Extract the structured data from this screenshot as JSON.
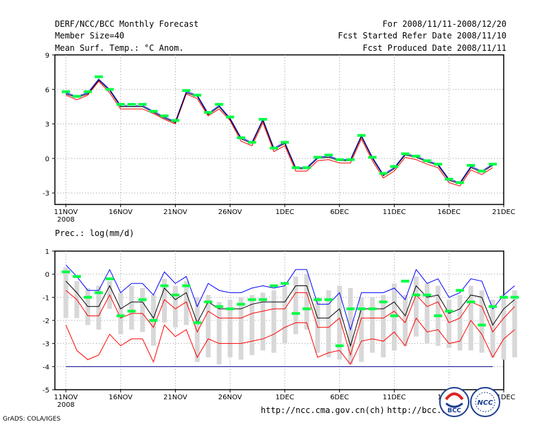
{
  "header": {
    "title": "DERF/NCC/BCC Monthly Forecast",
    "members": "Member Size=40",
    "variable": "Mean Surf. Temp.: °C Anom.",
    "period": "For 2008/11/11-2008/12/20",
    "start": "Fcst Started Refer Date 2008/11/10",
    "produced": "Fcst Produced Date 2008/11/11"
  },
  "footer": {
    "url1": "http://ncc.cma.gov.cn(ch)",
    "url2": "http://bcc.c",
    "grads": "GrADS: COLA/IGES",
    "logo_bcc": "BCC",
    "logo_ncc": "NCC"
  },
  "colors": {
    "upper": "#0000ff",
    "mean": "#000000",
    "lower": "#ff0000",
    "obs": "#00ff44",
    "range": "#d8d8d8",
    "grid": "#999999"
  },
  "chart_data": [
    {
      "type": "line",
      "title": "Mean Surf. Temp.: °C Anom.",
      "xticks": [
        "11NOV",
        "16NOV",
        "21NOV",
        "26NOV",
        "1DEC",
        "6DEC",
        "11DEC",
        "16DEC",
        "21DEC"
      ],
      "year_label": "2008",
      "yticks": [
        -3,
        0,
        3,
        6,
        9
      ],
      "ylim": [
        -4,
        9
      ],
      "series": [
        {
          "name": "upper",
          "values": [
            5.7,
            5.4,
            5.7,
            6.9,
            6.0,
            4.6,
            4.6,
            4.6,
            4.1,
            3.6,
            3.2,
            5.8,
            5.5,
            3.9,
            4.6,
            3.5,
            1.8,
            1.4,
            3.4,
            0.9,
            1.4,
            -0.8,
            -0.8,
            0.1,
            0.2,
            -0.1,
            -0.1,
            2.0,
            0.1,
            -1.4,
            -0.8,
            0.4,
            0.2,
            -0.2,
            -0.5,
            -1.8,
            -2.1,
            -0.7,
            -1.1,
            -0.5
          ]
        },
        {
          "name": "mean",
          "values": [
            5.6,
            5.3,
            5.6,
            6.8,
            5.9,
            4.5,
            4.5,
            4.5,
            4.0,
            3.5,
            3.1,
            5.7,
            5.4,
            3.8,
            4.5,
            3.4,
            1.7,
            1.3,
            3.3,
            0.8,
            1.3,
            -0.9,
            -0.9,
            0.0,
            0.1,
            -0.2,
            -0.2,
            1.9,
            0.0,
            -1.5,
            -0.9,
            0.3,
            0.1,
            -0.3,
            -0.6,
            -1.9,
            -2.2,
            -0.8,
            -1.2,
            -0.6
          ]
        },
        {
          "name": "lower",
          "values": [
            5.5,
            5.1,
            5.5,
            6.7,
            5.7,
            4.3,
            4.3,
            4.3,
            3.9,
            3.4,
            3.0,
            5.6,
            5.2,
            3.7,
            4.3,
            3.3,
            1.5,
            1.1,
            3.1,
            0.6,
            1.1,
            -1.1,
            -1.1,
            -0.2,
            -0.1,
            -0.4,
            -0.4,
            1.7,
            -0.2,
            -1.7,
            -1.1,
            0.1,
            -0.1,
            -0.5,
            -0.8,
            -2.1,
            -2.4,
            -1.0,
            -1.4,
            -0.8
          ]
        },
        {
          "name": "observed",
          "values": [
            5.8,
            5.4,
            5.8,
            7.1,
            6.0,
            4.7,
            4.7,
            4.7,
            4.1,
            3.7,
            3.3,
            5.9,
            5.5,
            4.0,
            4.7,
            3.6,
            1.8,
            1.4,
            3.4,
            0.9,
            1.4,
            -0.8,
            -0.8,
            0.1,
            0.3,
            -0.1,
            -0.1,
            2.0,
            0.1,
            -1.3,
            -0.7,
            0.4,
            0.2,
            -0.2,
            -0.5,
            -1.8,
            -2.1,
            -0.6,
            -1.1,
            -0.5
          ]
        }
      ]
    },
    {
      "type": "line",
      "title": "Prec.: log(mm/d)",
      "xticks": [
        "11NOV",
        "16NOV",
        "21NOV",
        "26NOV",
        "1DEC",
        "6DEC",
        "11DEC",
        "16DEC",
        "21DEC"
      ],
      "year_label": "2008",
      "yticks": [
        -5,
        -4,
        -3,
        -2,
        -1,
        0,
        1
      ],
      "ylim": [
        -5,
        1
      ],
      "series": [
        {
          "name": "upper",
          "values": [
            0.4,
            -0.1,
            -0.7,
            -0.7,
            0.2,
            -0.8,
            -0.4,
            -0.4,
            -0.9,
            0.1,
            -0.4,
            -0.1,
            -1.4,
            -0.4,
            -0.7,
            -0.8,
            -0.8,
            -0.6,
            -0.5,
            -0.6,
            -0.5,
            0.2,
            0.2,
            -1.3,
            -1.3,
            -0.8,
            -2.4,
            -0.8,
            -0.8,
            -0.8,
            -0.6,
            -1.1,
            0.2,
            -0.4,
            -0.2,
            -1.0,
            -0.8,
            -0.2,
            -0.3,
            -1.5,
            -0.9,
            -0.5
          ]
        },
        {
          "name": "mean",
          "values": [
            -0.3,
            -0.8,
            -1.4,
            -1.4,
            -0.5,
            -1.5,
            -1.2,
            -1.2,
            -1.9,
            -0.6,
            -1.1,
            -0.8,
            -2.1,
            -1.2,
            -1.5,
            -1.5,
            -1.5,
            -1.3,
            -1.2,
            -1.2,
            -1.2,
            -0.5,
            -0.5,
            -1.9,
            -1.9,
            -1.5,
            -3.1,
            -1.5,
            -1.5,
            -1.5,
            -1.2,
            -1.8,
            -0.5,
            -1.0,
            -0.9,
            -1.7,
            -1.5,
            -0.9,
            -1.0,
            -2.2,
            -1.5,
            -1.1
          ]
        },
        {
          "name": "p25",
          "values": [
            -0.7,
            -1.1,
            -1.8,
            -1.8,
            -0.9,
            -1.9,
            -1.7,
            -1.7,
            -2.3,
            -1.1,
            -1.5,
            -1.2,
            -2.5,
            -1.6,
            -1.9,
            -1.9,
            -1.9,
            -1.7,
            -1.6,
            -1.5,
            -1.5,
            -0.8,
            -0.8,
            -2.3,
            -2.3,
            -1.9,
            -3.5,
            -1.9,
            -1.9,
            -1.9,
            -1.6,
            -2.1,
            -0.9,
            -1.4,
            -1.2,
            -2.1,
            -1.9,
            -1.2,
            -1.4,
            -2.5,
            -1.9,
            -1.4
          ]
        },
        {
          "name": "lower",
          "values": [
            -2.2,
            -3.3,
            -3.7,
            -3.5,
            -2.6,
            -3.1,
            -2.8,
            -2.8,
            -3.8,
            -2.2,
            -2.7,
            -2.4,
            -3.6,
            -2.8,
            -3.0,
            -3.0,
            -3.0,
            -2.9,
            -2.8,
            -2.6,
            -2.3,
            -2.1,
            -2.1,
            -3.6,
            -3.4,
            -3.3,
            -3.9,
            -2.9,
            -2.8,
            -2.9,
            -2.5,
            -3.1,
            -1.9,
            -2.5,
            -2.4,
            -3.0,
            -2.9,
            -2.0,
            -2.6,
            -3.6,
            -2.8,
            -2.4
          ]
        },
        {
          "name": "observed",
          "values": [
            0.1,
            -0.1,
            -1.0,
            -0.8,
            -0.2,
            -1.8,
            -1.6,
            -1.1,
            -2.0,
            -0.5,
            -0.9,
            -0.5,
            -2.1,
            -1.2,
            -1.4,
            -1.5,
            -1.3,
            -1.1,
            -1.1,
            -0.5,
            -0.4,
            -1.7,
            -1.5,
            -1.1,
            -1.1,
            -3.1,
            -1.5,
            -1.5,
            -1.5,
            -1.2,
            -1.8,
            -0.3,
            -0.9,
            -0.9,
            -1.8,
            -1.6,
            -0.7,
            -1.2,
            -2.2,
            -1.4,
            -1.0,
            -1.0
          ]
        },
        {
          "name": "range_low",
          "values": [
            -1.9,
            -1.9,
            -2.2,
            -2.4,
            -1.5,
            -2.6,
            -2.4,
            -2.5,
            -3.1,
            -2.1,
            -2.3,
            -2.2,
            -3.8,
            -3.6,
            -3.9,
            -3.6,
            -3.7,
            -3.5,
            -3.3,
            -3.4,
            -3.0,
            -2.6,
            -2.4,
            -3.4,
            -3.6,
            -3.7,
            -3.9,
            -3.8,
            -3.4,
            -3.6,
            -3.3,
            -3.1,
            -2.7,
            -3.0,
            -3.1,
            -3.2,
            -3.3,
            -3.3,
            -3.4,
            -3.6,
            -3.7,
            -3.6
          ]
        },
        {
          "name": "range_high",
          "values": [
            0.3,
            -0.3,
            -0.6,
            -0.5,
            -0.3,
            -0.8,
            -0.5,
            -0.6,
            -0.9,
            -0.2,
            -0.5,
            -0.3,
            -1.0,
            -0.9,
            -1.2,
            -1.1,
            -1.0,
            -0.9,
            -0.8,
            -0.7,
            -0.5,
            -0.1,
            0.0,
            -1.0,
            -0.7,
            -0.5,
            -0.6,
            -1.0,
            -1.0,
            -0.9,
            -0.4,
            -0.9,
            -0.1,
            -0.4,
            -0.5,
            -1.1,
            -0.9,
            -0.5,
            -0.7,
            -1.1,
            -0.9,
            -0.7
          ]
        },
        {
          "name": "line_-4",
          "values": [
            -4.0
          ]
        }
      ]
    }
  ]
}
